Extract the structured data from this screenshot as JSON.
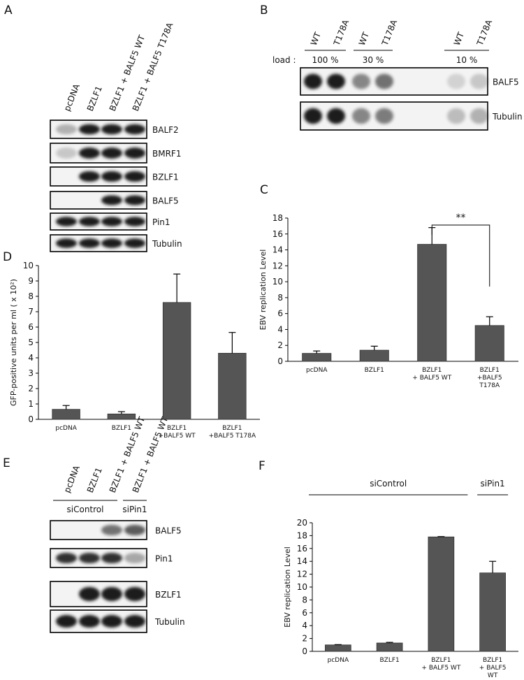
{
  "blot_a": {
    "letter": "A",
    "lanes": [
      "pcDNA",
      "BZLF1",
      "BZLF1 + BALF5 WT",
      "BZLF1 + BALF5 T178A"
    ],
    "rows": [
      "BALF2",
      "BMRF1",
      "BZLF1",
      "BALF5",
      "Pin1",
      "Tubulin"
    ]
  },
  "blot_b": {
    "letter": "B",
    "lanes": [
      "WT",
      "T178A",
      "WT",
      "T178A",
      "WT",
      "T178A"
    ],
    "load_label": "load :",
    "loads": [
      "100 %",
      "30 %",
      "10 %"
    ],
    "rows": [
      "BALF5",
      "Tubulin"
    ]
  },
  "blot_e": {
    "letter": "E",
    "lanes": [
      "pcDNA",
      "BZLF1",
      "BZLF1 + BALF5 WT",
      "BZLF1 + BALF5 WT"
    ],
    "groups": [
      "siControl",
      "siPin1"
    ],
    "rows": [
      "BALF5",
      "Pin1",
      "BZLF1",
      "Tubulin"
    ]
  },
  "chart_data": [
    {
      "type": "bar",
      "letter": "C",
      "ylabel": "EBV replication Level",
      "categories": [
        "pcDNA",
        "BZLF1",
        "BZLF1\n+ BALF5 WT",
        "BZLF1\n+BALF5 T178A"
      ],
      "values": [
        1.0,
        1.4,
        14.7,
        4.5
      ],
      "errors": [
        0.3,
        0.5,
        2.1,
        1.1
      ],
      "color": "#555555",
      "ylim": [
        0,
        18
      ],
      "yticks": [
        0,
        2,
        4,
        6,
        8,
        10,
        12,
        14,
        16,
        18
      ],
      "annotation": "**"
    },
    {
      "type": "bar",
      "letter": "D",
      "ylabel": "GFP-positive units per ml ( x 10²)",
      "categories": [
        "pcDNA",
        "BZLF1",
        "BZLF1\n+BALF5 WT",
        "BZLF1\n+BALF5 T178A"
      ],
      "values": [
        0.65,
        0.35,
        7.6,
        4.3
      ],
      "errors": [
        0.25,
        0.15,
        1.85,
        1.35
      ],
      "color": "#555555",
      "ylim": [
        0,
        10
      ],
      "yticks": [
        0,
        1,
        2,
        3,
        4,
        5,
        6,
        7,
        8,
        9,
        10
      ]
    },
    {
      "type": "bar",
      "letter": "F",
      "ylabel": "EBV replication Level",
      "categories": [
        "pcDNA",
        "BZLF1",
        "BZLF1\n+ BALF5 WT",
        "BZLF1\n+ BALF5 WT"
      ],
      "values": [
        1.0,
        1.3,
        17.8,
        12.2
      ],
      "errors": [
        0.05,
        0.1,
        0.05,
        1.8
      ],
      "color": "#555555",
      "ylim": [
        0,
        20
      ],
      "yticks": [
        0,
        2,
        4,
        6,
        8,
        10,
        12,
        14,
        16,
        18,
        20
      ],
      "groups": [
        "siControl",
        "siPin1"
      ]
    }
  ]
}
